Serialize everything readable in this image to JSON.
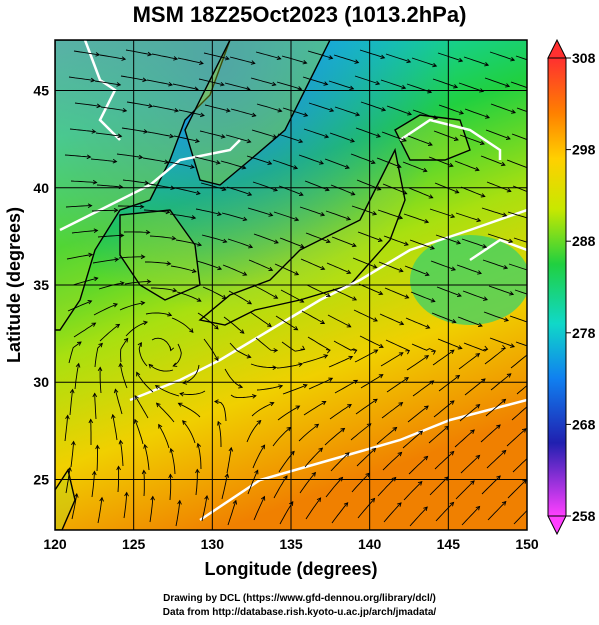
{
  "title": "MSM 18Z25Oct2023 (1013.2hPa)",
  "map": {
    "xlabel": "Longitude (degrees)",
    "ylabel": "Latitude  (degrees)",
    "lon_range": [
      120,
      150
    ],
    "lat_range": [
      22.4,
      47.6
    ],
    "lon_ticks": [
      "120",
      "125",
      "130",
      "135",
      "140",
      "145",
      "150"
    ],
    "lat_ticks": [
      "25",
      "30",
      "35",
      "40",
      "45"
    ],
    "field": "temperature (K) with wind streamlines",
    "contour_color": "#ffffff",
    "streamline_color": "#000000"
  },
  "colorbar": {
    "min": 258,
    "max": 308,
    "ticks": [
      "308",
      "298",
      "288",
      "278",
      "268",
      "258"
    ],
    "colors": [
      "#ff3030",
      "#ff8000",
      "#ffd000",
      "#c8e800",
      "#20d040",
      "#10d8c8",
      "#1080f0",
      "#2020b0",
      "#ff40ff"
    ]
  },
  "credits": {
    "line1": "Drawing by DCL (https://www.gfd-dennou.org/library/dcl/)",
    "line2": "Data from http://database.rish.kyoto-u.ac.jp/arch/jmadata/"
  }
}
